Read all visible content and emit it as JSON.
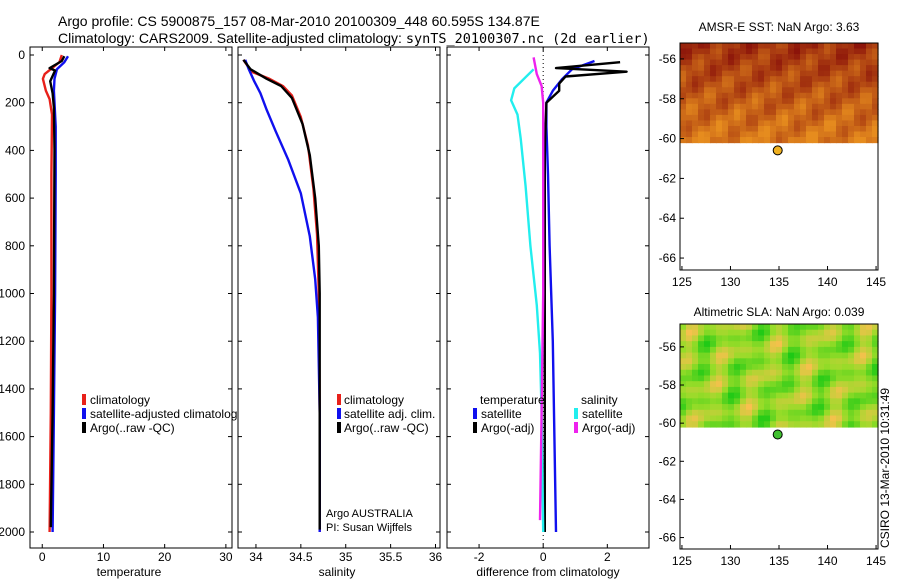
{
  "header": {
    "line1": "Argo profile: CS 5900875_157 08-Mar-2010 20100309_448 60.595S 134.87E",
    "line2_a": "Climatology: CARS2009.  Satellite-adjusted climatology: ",
    "line2_b": "synTS_20100307.nc (2d earlier)"
  },
  "credit": "CSIRO 13-Mar-2010 10:31:49",
  "colors": {
    "red": "#e8201a",
    "blue": "#1010ee",
    "black": "#000000",
    "cyan": "#22eeee",
    "magenta": "#ee22ee",
    "marker_sst": "#f0b020",
    "marker_sla": "#40c030"
  },
  "chart_data": [
    {
      "type": "line",
      "xlabel": "temperature",
      "ylabel": "",
      "xlim": [
        -2,
        31
      ],
      "ylim": [
        2050,
        0
      ],
      "xticks": [
        0,
        10,
        20,
        30
      ],
      "yticks": [
        0,
        200,
        400,
        600,
        800,
        1000,
        1200,
        1400,
        1600,
        1800,
        2000
      ],
      "ytick_labels": [
        "0",
        "200",
        "400",
        "600",
        "800",
        "1000",
        "1200",
        "1400",
        "1600",
        "1800",
        "2000"
      ],
      "legend": [
        "climatology",
        "satellite-adjusted climatolog",
        "Argo(..raw -QC)"
      ],
      "series": [
        {
          "name": "climatology",
          "color": "red",
          "points": [
            [
              3.2,
              0
            ],
            [
              2.8,
              30
            ],
            [
              0.4,
              80
            ],
            [
              0.1,
              100
            ],
            [
              0.6,
              150
            ],
            [
              1.2,
              185
            ],
            [
              1.6,
              250
            ],
            [
              1.5,
              500
            ],
            [
              1.5,
              1000
            ],
            [
              1.4,
              1500
            ],
            [
              1.2,
              2000
            ]
          ]
        },
        {
          "name": "satellite-adjusted climatolog",
          "color": "blue",
          "points": [
            [
              4.2,
              5
            ],
            [
              3.6,
              30
            ],
            [
              2.4,
              60
            ],
            [
              2.0,
              100
            ],
            [
              1.9,
              150
            ],
            [
              2.0,
              200
            ],
            [
              2.2,
              300
            ],
            [
              2.2,
              500
            ],
            [
              2.1,
              1000
            ],
            [
              1.9,
              1500
            ],
            [
              1.7,
              2000
            ]
          ]
        },
        {
          "name": "Argo(..raw -QC)",
          "color": "black",
          "points": [
            [
              3.6,
              5
            ],
            [
              3.2,
              25
            ],
            [
              1.2,
              55
            ],
            [
              2.1,
              65
            ],
            [
              1.3,
              110
            ],
            [
              1.7,
              160
            ],
            [
              1.9,
              220
            ],
            [
              2.0,
              400
            ],
            [
              1.9,
              1000
            ],
            [
              1.7,
              1500
            ],
            [
              1.4,
              1980
            ]
          ]
        }
      ]
    },
    {
      "type": "line",
      "xlabel": "salinity",
      "ylabel": "",
      "xlim": [
        33.8,
        36.05
      ],
      "ylim": [
        2050,
        0
      ],
      "xticks": [
        34,
        34.5,
        35,
        35.5,
        36
      ],
      "xtick_labels": [
        "34",
        "34.5",
        "35",
        "35.5",
        "36"
      ],
      "legend": [
        "climatology",
        "satellite adj. clim.",
        "Argo(..raw -QC)"
      ],
      "annotation_line1": "Argo AUSTRALIA",
      "annotation_line2": "PI: Susan Wijffels",
      "series": [
        {
          "name": "climatology",
          "color": "red",
          "points": [
            [
              33.86,
              20
            ],
            [
              33.95,
              70
            ],
            [
              34.15,
              100
            ],
            [
              34.3,
              130
            ],
            [
              34.4,
              170
            ],
            [
              34.5,
              260
            ],
            [
              34.58,
              380
            ],
            [
              34.64,
              560
            ],
            [
              34.68,
              750
            ],
            [
              34.7,
              1000
            ],
            [
              34.71,
              1500
            ],
            [
              34.71,
              2000
            ]
          ]
        },
        {
          "name": "satellite adj. clim.",
          "color": "blue",
          "points": [
            [
              33.88,
              20
            ],
            [
              33.92,
              60
            ],
            [
              33.98,
              110
            ],
            [
              34.05,
              160
            ],
            [
              34.12,
              230
            ],
            [
              34.22,
              320
            ],
            [
              34.36,
              440
            ],
            [
              34.5,
              580
            ],
            [
              34.6,
              760
            ],
            [
              34.66,
              940
            ],
            [
              34.69,
              1100
            ],
            [
              34.71,
              1500
            ],
            [
              34.71,
              2000
            ]
          ]
        },
        {
          "name": "Argo(..raw -QC)",
          "color": "black",
          "points": [
            [
              33.86,
              20
            ],
            [
              33.94,
              60
            ],
            [
              34.12,
              100
            ],
            [
              34.28,
              130
            ],
            [
              34.4,
              180
            ],
            [
              34.52,
              290
            ],
            [
              34.6,
              420
            ],
            [
              34.66,
              600
            ],
            [
              34.7,
              800
            ],
            [
              34.71,
              1000
            ],
            [
              34.71,
              1500
            ],
            [
              34.71,
              1990
            ]
          ]
        }
      ]
    },
    {
      "type": "line",
      "xlabel": "difference from climatology",
      "xlim": [
        -3.0,
        3.3
      ],
      "ylim": [
        2050,
        0
      ],
      "xticks": [
        -2,
        0,
        2
      ],
      "legend_temperature_title": "temperature",
      "legend_salinity_title": "salinity",
      "legend_temperature": [
        "satellite",
        "Argo(-adj)"
      ],
      "legend_salinity": [
        "satellite",
        "Argo(-adj)"
      ],
      "series": [
        {
          "name": "temperature satellite",
          "color": "blue",
          "points": [
            [
              1.6,
              25
            ],
            [
              0.9,
              60
            ],
            [
              0.6,
              100
            ],
            [
              0.3,
              150
            ],
            [
              0.1,
              200
            ],
            [
              0.1,
              300
            ],
            [
              0.15,
              500
            ],
            [
              0.2,
              800
            ],
            [
              0.3,
              1200
            ],
            [
              0.35,
              1600
            ],
            [
              0.4,
              2000
            ]
          ]
        },
        {
          "name": "temperature Argo(-adj)",
          "color": "black",
          "points": [
            [
              2.4,
              30
            ],
            [
              0.4,
              55
            ],
            [
              2.6,
              70
            ],
            [
              0.7,
              90
            ],
            [
              0.5,
              120
            ],
            [
              0.5,
              150
            ],
            [
              0.1,
              200
            ],
            [
              0.05,
              400
            ],
            [
              0.05,
              1000
            ],
            [
              0.05,
              1500
            ],
            [
              0.05,
              2000
            ]
          ]
        },
        {
          "name": "salinity satellite",
          "color": "cyan",
          "points": [
            [
              -0.3,
              60
            ],
            [
              -0.9,
              140
            ],
            [
              -1.0,
              190
            ],
            [
              -0.8,
              250
            ],
            [
              -0.7,
              350
            ],
            [
              -0.55,
              550
            ],
            [
              -0.4,
              800
            ],
            [
              -0.2,
              1050
            ],
            [
              -0.1,
              1250
            ],
            [
              -0.05,
              1500
            ],
            [
              0,
              2000
            ]
          ]
        },
        {
          "name": "salinity Argo(-adj)",
          "color": "magenta",
          "points": [
            [
              -0.3,
              10
            ],
            [
              -0.2,
              80
            ],
            [
              -0.05,
              130
            ],
            [
              0,
              200
            ],
            [
              0,
              500
            ],
            [
              0,
              1000
            ],
            [
              -0.05,
              1500
            ],
            [
              -0.1,
              1950
            ]
          ]
        }
      ]
    },
    {
      "type": "heatmap",
      "title": "AMSR-E SST: NaN Argo: 3.63",
      "xlim": [
        124.8,
        145.2
      ],
      "ylim": [
        -66.6,
        -55.2
      ],
      "xticks": [
        125,
        130,
        135,
        140,
        145
      ],
      "yticks": [
        -56,
        -58,
        -60,
        -62,
        -64,
        -66
      ],
      "data_lat_range": [
        -60.2,
        -55.2
      ],
      "argo_position": {
        "lon": 134.87,
        "lat": -60.595
      }
    },
    {
      "type": "heatmap",
      "title": "Altimetric SLA: NaN Argo: 0.039",
      "xlim": [
        124.8,
        145.2
      ],
      "ylim": [
        -66.6,
        -54.8
      ],
      "xticks": [
        125,
        130,
        135,
        140,
        145
      ],
      "yticks": [
        -56,
        -58,
        -60,
        -62,
        -64,
        -66
      ],
      "data_lat_range": [
        -60.2,
        -54.8
      ],
      "argo_position": {
        "lon": 134.87,
        "lat": -60.595
      }
    }
  ]
}
